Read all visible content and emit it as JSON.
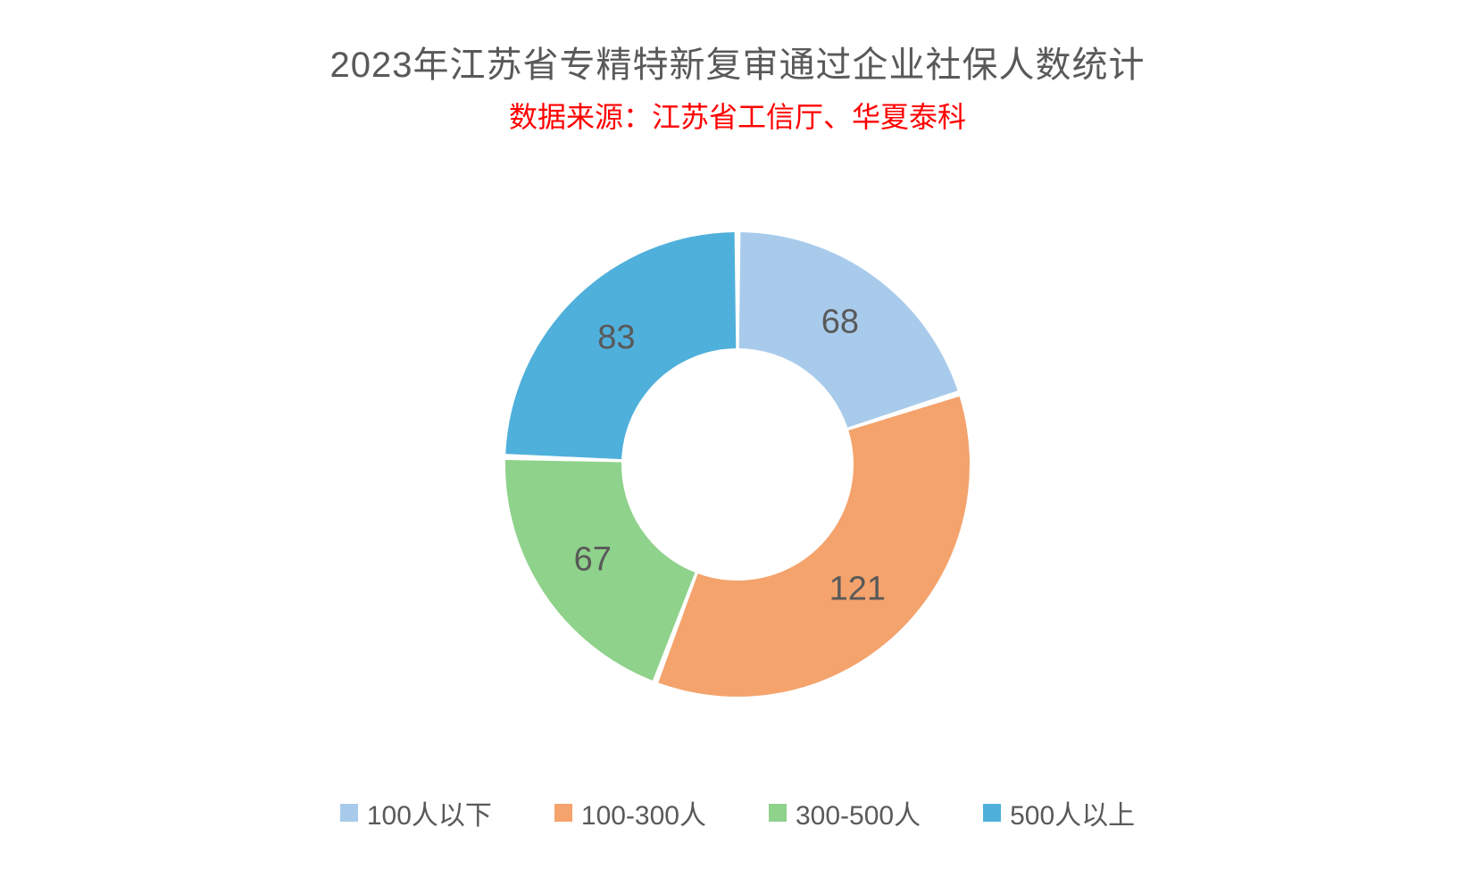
{
  "chart": {
    "type": "donut",
    "title": "2023年江苏省专精特新复审通过企业社保人数统计",
    "title_color": "#595959",
    "title_fontsize": 40,
    "subtitle": "数据来源：江苏省工信厅、华夏泰科",
    "subtitle_color": "#ff0000",
    "subtitle_fontsize": 32,
    "background_color": "#ffffff",
    "outer_radius": 260,
    "inner_radius": 130,
    "gap_deg": 1.5,
    "start_angle_deg": -90,
    "label_fontsize": 38,
    "label_color": "#595959",
    "label_radius": 195,
    "legend_fontsize": 30,
    "legend_text_color": "#595959",
    "slices": [
      {
        "label": "100人以下",
        "value": 68,
        "color": "#a9cbeb"
      },
      {
        "label": "100-300人",
        "value": 121,
        "color": "#f4a36c"
      },
      {
        "label": "300-500人",
        "value": 67,
        "color": "#8fd28b"
      },
      {
        "label": "500人以上",
        "value": 83,
        "color": "#4fb0db"
      }
    ]
  }
}
